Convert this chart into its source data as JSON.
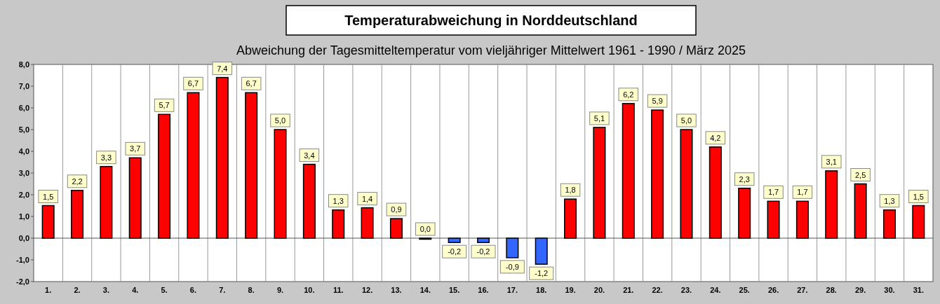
{
  "chart_data": {
    "type": "bar",
    "title": "Temperaturabweichung in Norddeutschland",
    "subtitle": "Abweichung der Tagesmitteltemperatur vom vieljähriger Mittelwert 1961 - 1990  /  März 2025",
    "categories": [
      "1.",
      "2.",
      "3.",
      "4.",
      "5.",
      "6.",
      "7.",
      "8.",
      "9.",
      "10.",
      "11.",
      "12.",
      "13.",
      "14.",
      "15.",
      "16.",
      "17.",
      "18.",
      "19.",
      "20.",
      "21.",
      "22.",
      "23.",
      "24.",
      "25.",
      "26.",
      "27.",
      "28.",
      "29.",
      "30.",
      "31."
    ],
    "values": [
      1.5,
      2.2,
      3.3,
      3.7,
      5.7,
      6.7,
      7.4,
      6.7,
      5.0,
      3.4,
      1.3,
      1.4,
      0.9,
      0.0,
      -0.2,
      -0.2,
      -0.9,
      -1.2,
      1.8,
      5.1,
      6.2,
      5.9,
      5.0,
      4.2,
      2.3,
      1.7,
      1.7,
      3.1,
      2.5,
      1.3,
      1.5
    ],
    "value_labels": [
      "1,5",
      "2,2",
      "3,3",
      "3,7",
      "5,7",
      "6,7",
      "7,4",
      "6,7",
      "5,0",
      "3,4",
      "1,3",
      "1,4",
      "0,9",
      "0,0",
      "-0,2",
      "-0,2",
      "-0,9",
      "-1,2",
      "1,8",
      "5,1",
      "6,2",
      "5,9",
      "5,0",
      "4,2",
      "2,3",
      "1,7",
      "1,7",
      "3,1",
      "2,5",
      "1,3",
      "1,5"
    ],
    "colors": [
      "#ff0000",
      "#ff0000",
      "#ff0000",
      "#ff0000",
      "#ff0000",
      "#ff0000",
      "#ff0000",
      "#ff0000",
      "#ff0000",
      "#ff0000",
      "#ff0000",
      "#ff0000",
      "#ff0000",
      "#3366ff",
      "#3366ff",
      "#3366ff",
      "#3366ff",
      "#3366ff",
      "#ff0000",
      "#ff0000",
      "#ff0000",
      "#ff0000",
      "#ff0000",
      "#ff0000",
      "#ff0000",
      "#ff0000",
      "#ff0000",
      "#ff0000",
      "#ff0000",
      "#ff0000",
      "#ff0000"
    ],
    "ylim": [
      -2,
      8
    ],
    "yticks": [
      {
        "value": -2,
        "label": "-2,0"
      },
      {
        "value": -1,
        "label": "-1,0"
      },
      {
        "value": 0,
        "label": "0,0"
      },
      {
        "value": 1,
        "label": "1,0"
      },
      {
        "value": 2,
        "label": "2,0"
      },
      {
        "value": 3,
        "label": "3,0"
      },
      {
        "value": 4,
        "label": "4,0"
      },
      {
        "value": 5,
        "label": "5,0"
      },
      {
        "value": 6,
        "label": "6,0"
      },
      {
        "value": 7,
        "label": "7,0"
      },
      {
        "value": 8,
        "label": "8,0"
      }
    ],
    "grid": "x"
  }
}
